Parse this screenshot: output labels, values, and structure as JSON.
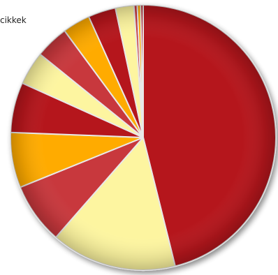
{
  "chart_data": {
    "type": "pie",
    "title": "cikkek",
    "slices": [
      {
        "value": 45.2,
        "color": "#b5121b"
      },
      {
        "value": 15.0,
        "color": "#fdf5a0"
      },
      {
        "value": 7.3,
        "color": "#c8373c"
      },
      {
        "value": 6.6,
        "color": "#ffab00"
      },
      {
        "value": 6.0,
        "color": "#b5121b"
      },
      {
        "value": 4.0,
        "color": "#fdf5a0"
      },
      {
        "value": 4.0,
        "color": "#c8373c"
      },
      {
        "value": 3.3,
        "color": "#ffab00"
      },
      {
        "value": 3.3,
        "color": "#b5121b"
      },
      {
        "value": 2.2,
        "color": "#fdf5a0"
      },
      {
        "value": 0.4,
        "color": "#c8373c"
      },
      {
        "value": 0.4,
        "color": "#ffab00"
      },
      {
        "value": 0.3,
        "color": "#b5121b"
      }
    ]
  }
}
